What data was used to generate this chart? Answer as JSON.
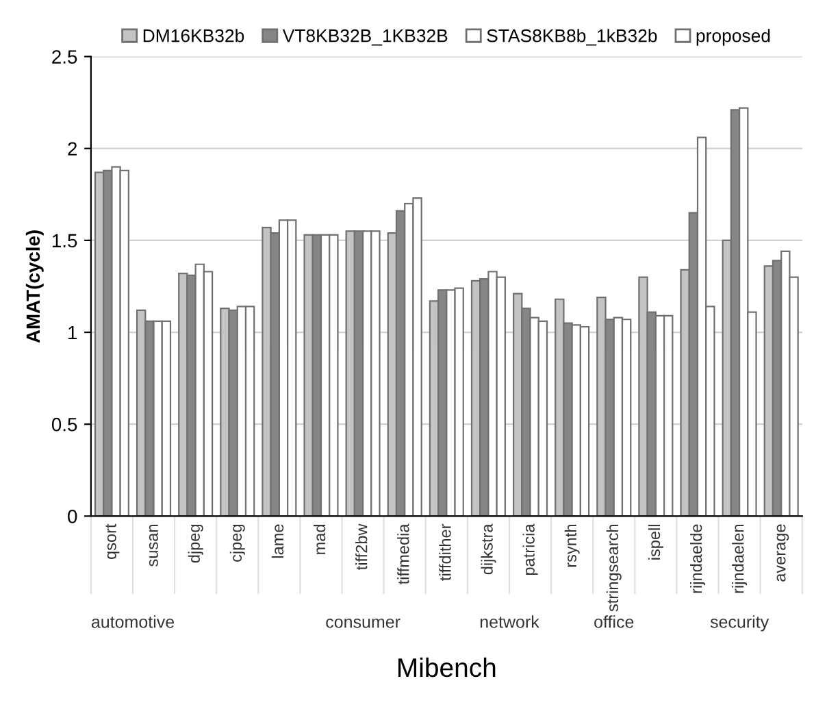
{
  "chart_data": {
    "type": "bar",
    "xlabel": "Mibench",
    "ylabel": "AMAT(cycle)",
    "categories": [
      "qsort",
      "susan",
      "djpeg",
      "cjpeg",
      "lame",
      "mad",
      "tiff2bw",
      "tiffmedia",
      "tiffdither",
      "dijkstra",
      "patricia",
      "rsynth",
      "stringsearch",
      "ispell",
      "rijndaelde",
      "rijndaelen",
      "average"
    ],
    "series": [
      {
        "name": "DM16KB32b",
        "color": "#c4c4c4",
        "values": [
          1.87,
          1.12,
          1.32,
          1.13,
          1.57,
          1.53,
          1.55,
          1.54,
          1.17,
          1.28,
          1.21,
          1.18,
          1.19,
          1.3,
          1.34,
          1.5,
          1.36
        ]
      },
      {
        "name": "VT8KB32B_1KB32B",
        "color": "#868686",
        "values": [
          1.88,
          1.06,
          1.31,
          1.12,
          1.54,
          1.53,
          1.55,
          1.66,
          1.23,
          1.29,
          1.13,
          1.05,
          1.07,
          1.11,
          1.65,
          2.21,
          1.39
        ]
      },
      {
        "name": "STAS8KB8b_1kB32b",
        "color": "#ffffff",
        "values": [
          1.9,
          1.06,
          1.37,
          1.14,
          1.61,
          1.53,
          1.55,
          1.7,
          1.23,
          1.33,
          1.08,
          1.04,
          1.08,
          1.09,
          2.06,
          2.22,
          1.44
        ]
      },
      {
        "name": "proposed",
        "color": "#ffffff",
        "values": [
          1.88,
          1.06,
          1.33,
          1.14,
          1.61,
          1.53,
          1.55,
          1.73,
          1.24,
          1.3,
          1.06,
          1.03,
          1.07,
          1.09,
          1.14,
          1.11,
          1.3
        ]
      }
    ],
    "ylim": [
      0,
      2.5
    ],
    "yticks": [
      0,
      0.5,
      1,
      1.5,
      2,
      2.5
    ],
    "grid": "y",
    "legend": "top",
    "annotations": [
      "automotive",
      "consumer",
      "network",
      "office",
      "security"
    ]
  }
}
